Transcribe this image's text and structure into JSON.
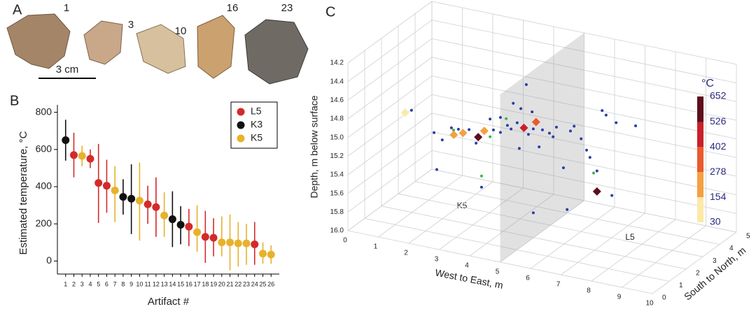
{
  "panel_a": {
    "label": "A",
    "artifacts": [
      "1",
      "3",
      "10",
      "16",
      "23"
    ],
    "scale": "3 cm"
  },
  "chart_data": [
    {
      "type": "errorbar",
      "panel": "B",
      "xlabel": "Artifact #",
      "ylabel": "Estimated temperature, °C",
      "xlim": [
        0,
        27
      ],
      "xticks": [
        1,
        2,
        3,
        4,
        5,
        6,
        7,
        8,
        9,
        10,
        11,
        12,
        13,
        14,
        15,
        16,
        17,
        18,
        19,
        20,
        21,
        22,
        23,
        24,
        25,
        26
      ],
      "ylim": [
        -70,
        840
      ],
      "yticks": [
        0,
        200,
        400,
        600,
        800
      ],
      "legend": "upper right",
      "series": [
        {
          "name": "L5",
          "color": "#d42a2a",
          "x": [
            2,
            4,
            5,
            6,
            11,
            12,
            16,
            18,
            19,
            24
          ],
          "values": [
            570,
            550,
            420,
            405,
            305,
            290,
            185,
            130,
            125,
            90
          ],
          "low": [
            450,
            500,
            205,
            260,
            200,
            130,
            80,
            -10,
            25,
            -20
          ],
          "high": [
            690,
            600,
            630,
            545,
            405,
            450,
            280,
            270,
            230,
            210
          ]
        },
        {
          "name": "K3",
          "color": "#111111",
          "x": [
            1,
            8,
            9,
            14,
            15
          ],
          "values": [
            650,
            345,
            335,
            225,
            195
          ],
          "low": [
            540,
            250,
            145,
            75,
            90
          ],
          "high": [
            760,
            440,
            520,
            375,
            295
          ]
        },
        {
          "name": "K5",
          "color": "#e7b22b",
          "x": [
            3,
            7,
            10,
            13,
            17,
            20,
            21,
            22,
            23,
            25,
            26
          ],
          "values": [
            565,
            380,
            325,
            245,
            155,
            100,
            100,
            95,
            95,
            40,
            35
          ],
          "low": [
            510,
            210,
            110,
            130,
            50,
            25,
            -50,
            -30,
            -20,
            -15,
            -15
          ],
          "high": [
            620,
            510,
            530,
            370,
            300,
            240,
            250,
            210,
            200,
            100,
            85
          ]
        }
      ]
    },
    {
      "type": "scatter3d",
      "panel": "C",
      "xlabel": "West to East, m",
      "ylabel": "South to North, m",
      "zlabel": "Depth, m below surface",
      "xlim": [
        0,
        10
      ],
      "ylim": [
        0,
        5
      ],
      "zlim": [
        14.2,
        16
      ],
      "xticks": [
        0,
        1,
        2,
        3,
        4,
        5,
        6,
        7,
        8,
        9,
        10
      ],
      "yticks": [
        0,
        1,
        2,
        3,
        4,
        5
      ],
      "zticks": [
        14.2,
        14.4,
        14.6,
        14.8,
        {
          "value": 15,
          "label": "15.0"
        },
        15.2,
        15.4,
        15.6,
        15.8,
        {
          "value": 16,
          "label": "16.0"
        }
      ],
      "plane_x": 5,
      "annotations": [
        "K5",
        "L5"
      ],
      "series": [
        {
          "color": "#2a3ea8",
          "marker": "dot",
          "x": [
            0.71,
            4.48,
            4.05,
            4.3,
            4.67,
            3.63,
            3.29,
            6.97,
            7.1,
            8.07,
            6.05,
            6.28,
            6.46,
            6.57,
            5.7,
            6.8,
            1.54,
            3.01,
            4.71,
            5.82,
            7.29,
            4.25,
            4.9,
            1.72,
            2.83,
            3.86,
            4.18,
            5.24,
            5.47,
            2.02,
            2.25,
            2.6,
            3.4,
            3.63,
            4.55,
            5.01,
            5.36,
            5.93,
            7.43,
            4.71,
            3.06,
            3.98,
            1.45
          ],
          "y": [
            2.5,
            2.5,
            2.5,
            2.5,
            2.5,
            2.5,
            2.5,
            2.5,
            2.5,
            2.5,
            2.5,
            2.5,
            2.5,
            2.5,
            2.5,
            2.5,
            2.5,
            2.5,
            2.5,
            2.5,
            2.5,
            2.5,
            2.5,
            2.5,
            2.5,
            2.5,
            2.5,
            2.5,
            2.5,
            2.5,
            2.5,
            2.5,
            2.5,
            2.5,
            2.5,
            2.5,
            2.5,
            2.5,
            2.5,
            2.5,
            2.5,
            2.5,
            2.5
          ],
          "z": [
            14.99,
            14.46,
            14.69,
            14.73,
            14.74,
            14.87,
            14.91,
            14.57,
            14.61,
            14.66,
            14.8,
            14.92,
            15.03,
            15.1,
            15.27,
            15.23,
            15.57,
            15.66,
            15.82,
            15.71,
            15.46,
            15.16,
            15.1,
            15.24,
            15.2,
            14.94,
            14.89,
            14.93,
            14.85,
            15.09,
            15.09,
            15.07,
            15.02,
            15.03,
            14.99,
            14.91,
            14.96,
            14.86,
            14.67,
            14.92,
            15.06,
            14.97,
            15.18
          ]
        },
        {
          "color": "#3cb44a",
          "marker": "dot",
          "x": [
            2.09,
            3.82,
            3.01,
            6.69,
            3.29
          ],
          "y": [
            2.5,
            2.5,
            2.5,
            2.5,
            2.5
          ],
          "z": [
            15.11,
            14.87,
            15.54,
            15.26,
            15.1
          ]
        },
        {
          "marker": "diamond",
          "x": [
            0.5,
            2.1,
            2.4,
            2.9,
            3.1,
            4.4,
            4.8,
            6.8
          ],
          "y": [
            2.5,
            2.5,
            2.5,
            2.5,
            2.5,
            2.5,
            2.5,
            2.5
          ],
          "z": [
            15.03,
            15.16,
            15.12,
            15.13,
            15.05,
            14.93,
            14.84,
            15.45
          ],
          "temperature": [
            100,
            200,
            250,
            560,
            180,
            480,
            300,
            650
          ]
        }
      ],
      "colorbar": {
        "title": "°C",
        "ticks": [
          30,
          154,
          278,
          402,
          526,
          652
        ],
        "colors": [
          "#fbe9a8",
          "#f3a043",
          "#ea5a2d",
          "#c8202a",
          "#5e0d1c"
        ]
      }
    }
  ]
}
